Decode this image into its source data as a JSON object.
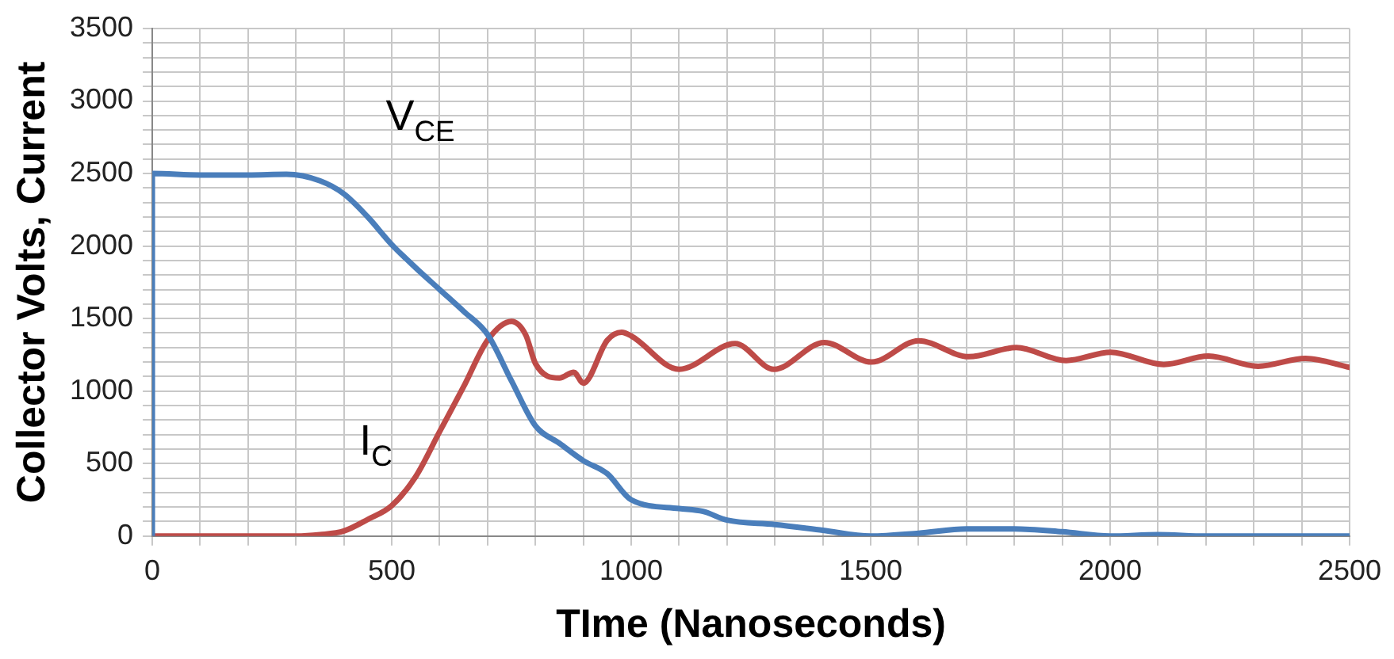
{
  "chart_data": {
    "type": "line",
    "xlabel": "TIme (Nanoseconds)",
    "ylabel": "Collector Volts, Current",
    "legend": false,
    "grid": true,
    "marker": "none",
    "line_style": "solid",
    "xlim": [
      0,
      2500
    ],
    "ylim": [
      0,
      3500
    ],
    "xticks": [
      0,
      {
        "value": 100,
        "label": null
      },
      {
        "value": 200,
        "label": null
      },
      {
        "value": 300,
        "label": null
      },
      {
        "value": 400,
        "label": null
      },
      500,
      {
        "value": 600,
        "label": null
      },
      {
        "value": 700,
        "label": null
      },
      {
        "value": 800,
        "label": null
      },
      {
        "value": 900,
        "label": null
      },
      1000,
      {
        "value": 1100,
        "label": null
      },
      {
        "value": 1200,
        "label": null
      },
      {
        "value": 1300,
        "label": null
      },
      {
        "value": 1400,
        "label": null
      },
      1500,
      {
        "value": 1600,
        "label": null
      },
      {
        "value": 1700,
        "label": null
      },
      {
        "value": 1800,
        "label": null
      },
      {
        "value": 1900,
        "label": null
      },
      2000,
      {
        "value": 2100,
        "label": null
      },
      {
        "value": 2200,
        "label": null
      },
      {
        "value": 2300,
        "label": null
      },
      {
        "value": 2400,
        "label": null
      },
      2500
    ],
    "yticks": [
      0,
      {
        "value": 100,
        "label": null
      },
      {
        "value": 200,
        "label": null
      },
      {
        "value": 300,
        "label": null
      },
      {
        "value": 400,
        "label": null
      },
      500,
      {
        "value": 600,
        "label": null
      },
      {
        "value": 700,
        "label": null
      },
      {
        "value": 800,
        "label": null
      },
      {
        "value": 900,
        "label": null
      },
      1000,
      {
        "value": 1100,
        "label": null
      },
      {
        "value": 1200,
        "label": null
      },
      {
        "value": 1300,
        "label": null
      },
      {
        "value": 1400,
        "label": null
      },
      1500,
      {
        "value": 1600,
        "label": null
      },
      {
        "value": 1700,
        "label": null
      },
      {
        "value": 1800,
        "label": null
      },
      {
        "value": 1900,
        "label": null
      },
      2000,
      {
        "value": 2100,
        "label": null
      },
      {
        "value": 2200,
        "label": null
      },
      {
        "value": 2300,
        "label": null
      },
      {
        "value": 2400,
        "label": null
      },
      2500,
      {
        "value": 2600,
        "label": null
      },
      {
        "value": 2700,
        "label": null
      },
      {
        "value": 2800,
        "label": null
      },
      {
        "value": 2900,
        "label": null
      },
      3000,
      {
        "value": 3100,
        "label": null
      },
      {
        "value": 3200,
        "label": null
      },
      {
        "value": 3300,
        "label": null
      },
      {
        "value": 3400,
        "label": null
      },
      3500
    ],
    "series": [
      {
        "name": "V$_{CE}$",
        "color": "#4a7ebb",
        "x": [
          0,
          0,
          100,
          200,
          280,
          350,
          400,
          450,
          500,
          550,
          600,
          650,
          700,
          750,
          800,
          850,
          900,
          950,
          1000,
          1100,
          1150,
          1200,
          1300,
          1400,
          1500,
          1600,
          1700,
          1800,
          1900,
          2000,
          2100,
          2200,
          2300,
          2400,
          2500
        ],
        "values": [
          0,
          2500,
          2490,
          2490,
          2495,
          2450,
          2360,
          2200,
          2010,
          1850,
          1700,
          1550,
          1390,
          1070,
          760,
          640,
          520,
          430,
          250,
          190,
          170,
          110,
          80,
          40,
          0,
          20,
          50,
          50,
          30,
          0,
          10,
          0,
          0,
          0,
          0
        ]
      },
      {
        "name": "I$_{C}$",
        "color": "#be4b48",
        "x": [
          0,
          100,
          200,
          300,
          350,
          400,
          450,
          500,
          550,
          600,
          650,
          700,
          750,
          780,
          800,
          850,
          880,
          900,
          950,
          980,
          1000,
          1100,
          1217,
          1298,
          1403,
          1502,
          1600,
          1705,
          1804,
          1908,
          2001,
          2112,
          2205,
          2309,
          2408,
          2500
        ],
        "values": [
          0,
          0,
          0,
          0,
          10,
          35,
          115,
          210,
          410,
          720,
          1030,
          1350,
          1480,
          1385,
          1190,
          1090,
          1130,
          1055,
          1350,
          1405,
          1380,
          1150,
          1327,
          1150,
          1335,
          1200,
          1347,
          1237,
          1300,
          1210,
          1268,
          1183,
          1241,
          1171,
          1225,
          1163
        ]
      }
    ]
  }
}
